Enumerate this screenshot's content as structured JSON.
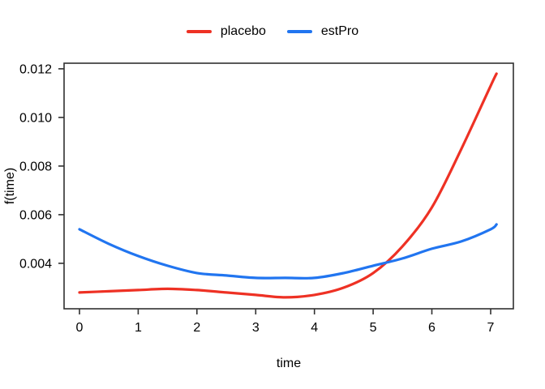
{
  "legend": {
    "items": [
      {
        "label": "placebo",
        "color": "#ee3124"
      },
      {
        "label": "estPro",
        "color": "#2175f0"
      }
    ]
  },
  "chart_data": {
    "type": "line",
    "title": "",
    "xlabel": "time",
    "ylabel": "f(time)",
    "xlim": [
      -0.262,
      7.387
    ],
    "ylim": [
      0.00213,
      0.01223
    ],
    "x_ticks": [
      0,
      1,
      2,
      3,
      4,
      5,
      6,
      7
    ],
    "x_tick_labels": [
      "0",
      "1",
      "2",
      "3",
      "4",
      "5",
      "6",
      "7"
    ],
    "y_ticks": [
      0.004,
      0.006,
      0.008,
      0.01,
      0.012
    ],
    "y_tick_labels": [
      "0.004",
      "0.006",
      "0.008",
      "0.010",
      "0.012"
    ],
    "grid": false,
    "legend_position": "top-center",
    "x": [
      0,
      0.5,
      1,
      1.5,
      2,
      2.5,
      3,
      3.5,
      4,
      4.5,
      5,
      5.5,
      6,
      6.5,
      7,
      7.1
    ],
    "series": [
      {
        "name": "placebo",
        "color": "#ee3124",
        "values": [
          0.0028,
          0.00285,
          0.0029,
          0.00295,
          0.0029,
          0.0028,
          0.0027,
          0.0026,
          0.0027,
          0.003,
          0.0036,
          0.0047,
          0.0063,
          0.0087,
          0.0113,
          0.0118
        ]
      },
      {
        "name": "estPro",
        "color": "#2175f0",
        "values": [
          0.0054,
          0.0048,
          0.0043,
          0.0039,
          0.0036,
          0.0035,
          0.0034,
          0.0034,
          0.0034,
          0.0036,
          0.0039,
          0.0042,
          0.0046,
          0.0049,
          0.0054,
          0.0056
        ]
      }
    ]
  }
}
